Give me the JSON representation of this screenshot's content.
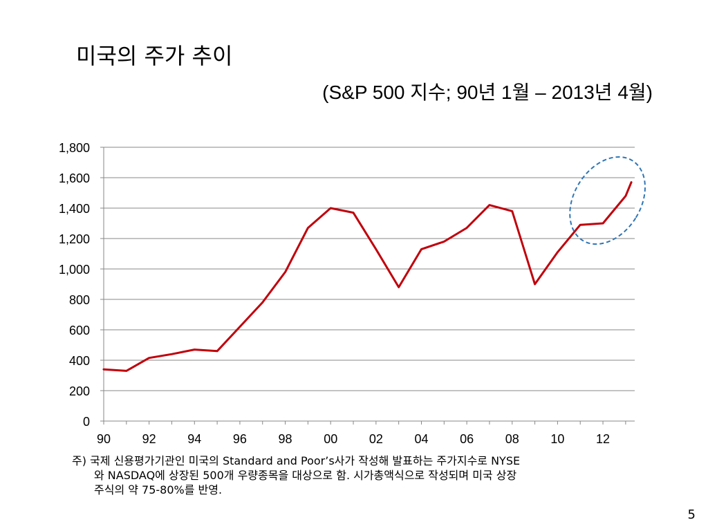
{
  "slide": {
    "title": "미국의 주가 추이",
    "subtitle": "(S&P 500 지수; 90년 1월 – 2013년 4월)",
    "note_lines": [
      "주) 국제 신용평가기관인 미국의 Standard and Poor’s사가 작성해 발표하는 주가지수로 NYSE",
      "와 NASDAQ에 상장된  500개 우량종목을 대상으로 함. 시가총액식으로 작성되며 미국 상장",
      "주식의 약 75-80%를 반영."
    ],
    "page_number": "5"
  },
  "chart_data": {
    "type": "line",
    "title": "",
    "xlabel": "",
    "ylabel": "",
    "ylim": [
      0,
      1800
    ],
    "yticks": [
      0,
      200,
      400,
      600,
      800,
      1000,
      1200,
      1400,
      1600,
      1800
    ],
    "ytick_labels": [
      "0",
      "200",
      "400",
      "600",
      "800",
      "1,000",
      "1,200",
      "1,400",
      "1,600",
      "1,800"
    ],
    "xlim": [
      1990,
      2013.4
    ],
    "xticks": [
      1990,
      1992,
      1994,
      1996,
      1998,
      2000,
      2002,
      2004,
      2006,
      2008,
      2010,
      2012
    ],
    "xtick_labels": [
      "90",
      "92",
      "94",
      "96",
      "98",
      "00",
      "02",
      "04",
      "06",
      "08",
      "10",
      "12"
    ],
    "grid": "horizontal",
    "line_color": "#c0000b",
    "highlight_color": "#2e75b6",
    "series": [
      {
        "name": "",
        "x": [
          1990,
          1991,
          1992,
          1993,
          1994,
          1995,
          1996,
          1997,
          1998,
          1999,
          2000,
          2001,
          2002,
          2003,
          2004,
          2005,
          2006,
          2007,
          2008,
          2009,
          2010,
          2011,
          2012,
          2013,
          2013.25
        ],
        "values": [
          340,
          330,
          415,
          440,
          470,
          460,
          620,
          780,
          980,
          1270,
          1400,
          1370,
          1130,
          880,
          1130,
          1180,
          1270,
          1420,
          1380,
          900,
          1110,
          1290,
          1300,
          1480,
          1570
        ]
      }
    ]
  }
}
